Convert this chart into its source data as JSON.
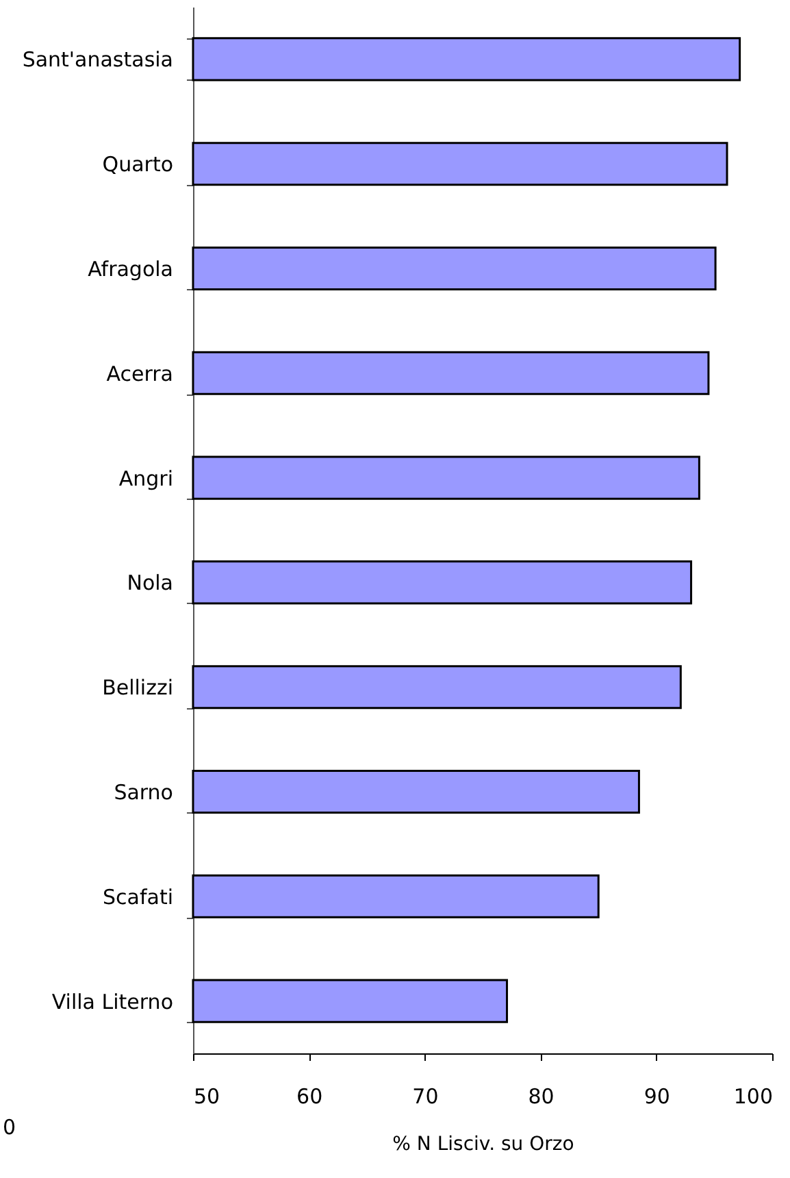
{
  "chart_data": {
    "type": "bar",
    "orientation": "horizontal",
    "categories": [
      "Sant'anastasia",
      "Quarto",
      "Afragola",
      "Acerra",
      "Angri",
      "Nola",
      "Bellizzi",
      "Sarno",
      "Scafati",
      "Villa Literno"
    ],
    "values": [
      97.2,
      96.1,
      95.1,
      94.5,
      93.7,
      93.0,
      92.1,
      88.5,
      85.0,
      77.1
    ],
    "color": "#9999ff",
    "xlabel": "% N Lisciv. su Orzo",
    "xlim": [
      50,
      100
    ],
    "xticks": [
      50,
      60,
      70,
      80,
      90,
      100
    ],
    "annotations": [
      "0"
    ]
  }
}
